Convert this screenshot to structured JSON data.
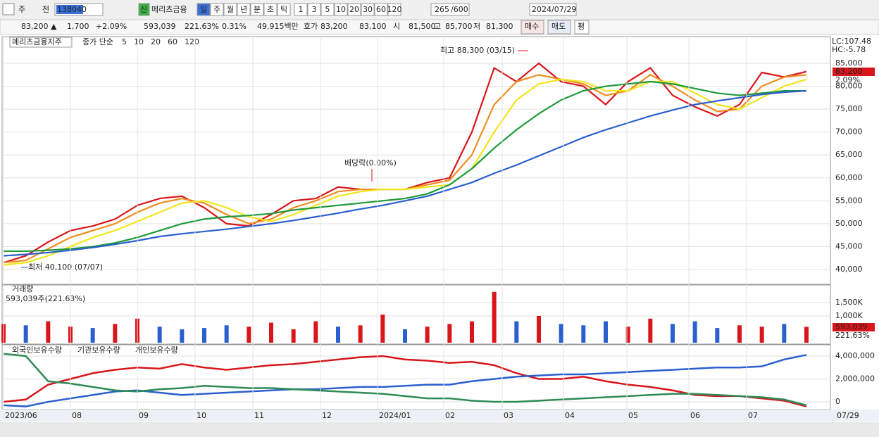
{
  "toolbar": {
    "period_buttons": [
      "주",
      "전"
    ],
    "code": "138040",
    "name_badge": "신",
    "name": "메리츠금융",
    "intervals": [
      "일",
      "주",
      "월",
      "년",
      "분",
      "초",
      "틱"
    ],
    "numbers": [
      "1",
      "3",
      "5",
      "10",
      "20",
      "30",
      "60",
      "120"
    ],
    "count": "265",
    "count_max": "/600",
    "date": "2024/07/29"
  },
  "quote": {
    "price": "83,200 ▲",
    "change": "1,700",
    "rate": "+2.09%",
    "volume": "593,039",
    "volume_ratio": "221.63%",
    "turnover": "0.31%",
    "amount": "49,915백만",
    "bid_label": "호가",
    "ask": "83,200",
    "bid": "83,100",
    "open_label": "시",
    "open": "81,500",
    "high_label": "고",
    "high": "85,700",
    "low_label": "저",
    "low": "81,300",
    "buy": "매수",
    "sell": "매도",
    "avg": "평"
  },
  "x_axis": {
    "labels": [
      "2023/06",
      "08",
      "09",
      "10",
      "11",
      "12",
      "2024/01",
      "02",
      "03",
      "04",
      "05",
      "06",
      "07"
    ],
    "end": "07/29"
  },
  "chart_data": [
    {
      "type": "line",
      "title": "메리츠금융지주",
      "legend_title": "종가 단순",
      "right_labels": [
        "LC:107.48",
        "HC:-5.78"
      ],
      "last_price": "83,200",
      "last_rate": "2.09%",
      "annotations": [
        "최고 88,300 (03/15)",
        "최저 40,100 (07/07)",
        "배당락(0.00%)"
      ],
      "ylim": [
        36930,
        90370
      ],
      "yticks": [
        {
          "value": 40000,
          "label": "40,000"
        },
        {
          "value": 45000,
          "label": "45,000"
        },
        {
          "value": 50000,
          "label": "50,000"
        },
        {
          "value": 55000,
          "label": "55,000"
        },
        {
          "value": 60000,
          "label": "60,000"
        },
        {
          "value": 65000,
          "label": "65,000"
        },
        {
          "value": 70000,
          "label": "70,000"
        },
        {
          "value": 75000,
          "label": "75,000"
        },
        {
          "value": 80000,
          "label": "80,000"
        },
        {
          "value": 85000,
          "label": "85,000"
        }
      ],
      "series": [
        {
          "name": "5",
          "color": "#d9161b",
          "values": [
            41500,
            43000,
            46000,
            48500,
            49500,
            51000,
            54000,
            55500,
            56000,
            53500,
            50000,
            49500,
            52000,
            55000,
            55500,
            58000,
            57500,
            57500,
            57500,
            59000,
            60000,
            70000,
            84000,
            81000,
            85000,
            81000,
            80000,
            76000,
            81000,
            84000,
            78000,
            75500,
            73500,
            76000,
            83000,
            82000,
            83200
          ]
        },
        {
          "name": "10",
          "color": "#f08c1e",
          "values": [
            41500,
            42000,
            44500,
            47000,
            48500,
            50000,
            52500,
            54500,
            55500,
            54500,
            52000,
            50000,
            51000,
            53500,
            55000,
            57000,
            57500,
            57500,
            57500,
            58500,
            59500,
            65000,
            76000,
            81000,
            82500,
            81500,
            80500,
            78000,
            79000,
            82500,
            80000,
            77000,
            74500,
            75000,
            80000,
            82000,
            82500
          ]
        },
        {
          "name": "20",
          "color": "#f2e61a",
          "values": [
            41000,
            41500,
            43000,
            45000,
            47000,
            48500,
            50500,
            52500,
            54500,
            55000,
            53500,
            51500,
            50500,
            52000,
            54000,
            56000,
            57000,
            57500,
            57500,
            58000,
            58500,
            62000,
            70000,
            77000,
            80500,
            81500,
            81000,
            79000,
            79000,
            81000,
            81000,
            78500,
            76000,
            75000,
            77500,
            80000,
            81500
          ]
        },
        {
          "name": "60",
          "color": "#1f9a3a",
          "values": [
            44000,
            44000,
            44200,
            44500,
            45000,
            45800,
            47000,
            48500,
            50000,
            51000,
            51500,
            51800,
            52200,
            53000,
            53500,
            54000,
            54500,
            55000,
            55500,
            56500,
            58500,
            62000,
            66500,
            70500,
            74000,
            77000,
            79000,
            80000,
            80500,
            81000,
            80500,
            79500,
            78500,
            78000,
            78500,
            79000,
            79000
          ]
        },
        {
          "name": "120",
          "color": "#2b5fcf",
          "values": [
            43000,
            43300,
            43700,
            44200,
            44800,
            45500,
            46300,
            47200,
            47800,
            48300,
            48800,
            49400,
            50000,
            50700,
            51500,
            52300,
            53200,
            54000,
            55000,
            56000,
            57500,
            59000,
            61000,
            62800,
            64800,
            66800,
            68800,
            70500,
            72000,
            73500,
            74800,
            76000,
            76800,
            77500,
            78200,
            78700,
            79000
          ]
        }
      ]
    },
    {
      "type": "bar",
      "title": "거래량",
      "subtitle": "593,039주(221.63%)",
      "last_value": "593,039",
      "last_rate": "221.63%",
      "ylim": [
        0,
        2000000
      ],
      "yticks": [
        {
          "value": 1000000,
          "label": "1,000K"
        },
        {
          "value": 1500000,
          "label": "1,500K"
        }
      ],
      "values": [
        700000,
        650000,
        800000,
        600000,
        550000,
        700000,
        900000,
        600000,
        500000,
        550000,
        650000,
        600000,
        750000,
        500000,
        800000,
        600000,
        650000,
        1050000,
        500000,
        600000,
        700000,
        800000,
        1900000,
        800000,
        1000000,
        700000,
        650000,
        800000,
        600000,
        900000,
        700000,
        800000,
        550000,
        650000,
        600000,
        700000,
        593039
      ],
      "colors": [
        "#d9161b",
        "#2b5fcf",
        "#d9161b",
        "#d9161b",
        "#2b5fcf",
        "#d9161b",
        "#d9161b",
        "#2b5fcf",
        "#2b5fcf",
        "#2b5fcf",
        "#2b5fcf",
        "#d9161b",
        "#d9161b",
        "#d9161b",
        "#d9161b",
        "#2b5fcf",
        "#d9161b",
        "#d9161b",
        "#2b5fcf",
        "#d9161b",
        "#d9161b",
        "#d9161b",
        "#d9161b",
        "#2b5fcf",
        "#d9161b",
        "#2b5fcf",
        "#2b5fcf",
        "#2b5fcf",
        "#d9161b",
        "#d9161b",
        "#2b5fcf",
        "#2b5fcf",
        "#2b5fcf",
        "#d9161b",
        "#d9161b",
        "#2b5fcf",
        "#d9161b"
      ]
    },
    {
      "type": "line",
      "ylim": [
        -550000,
        4980000
      ],
      "yticks": [
        {
          "value": 0,
          "label": "0"
        },
        {
          "value": 2000000,
          "label": "2,000,000"
        },
        {
          "value": 4000000,
          "label": "4,000,000"
        }
      ],
      "series": [
        {
          "name": "외국인보유수량",
          "color": "#d9161b",
          "values": [
            0,
            200000,
            1500000,
            2000000,
            2500000,
            2800000,
            3000000,
            2900000,
            3300000,
            3000000,
            2800000,
            3000000,
            3200000,
            3300000,
            3500000,
            3700000,
            3900000,
            4000000,
            3700000,
            3600000,
            3400000,
            3500000,
            3200000,
            2500000,
            2000000,
            2000000,
            2200000,
            1800000,
            1500000,
            1300000,
            1000000,
            600000,
            500000,
            500000,
            300000,
            100000,
            -400000
          ]
        },
        {
          "name": "기관보유수량",
          "color": "#2b5fcf",
          "values": [
            -300000,
            -400000,
            0,
            300000,
            600000,
            900000,
            1000000,
            800000,
            600000,
            700000,
            800000,
            900000,
            1000000,
            1100000,
            1100000,
            1200000,
            1300000,
            1300000,
            1400000,
            1500000,
            1500000,
            1800000,
            2000000,
            2200000,
            2300000,
            2400000,
            2400000,
            2500000,
            2600000,
            2700000,
            2800000,
            2900000,
            3000000,
            3000000,
            3100000,
            3700000,
            4100000
          ]
        },
        {
          "name": "개인보유수량",
          "color": "#2e8b57",
          "values": [
            4200000,
            4000000,
            1800000,
            1600000,
            1300000,
            1000000,
            900000,
            1100000,
            1200000,
            1400000,
            1300000,
            1200000,
            1200000,
            1100000,
            1000000,
            900000,
            800000,
            700000,
            500000,
            300000,
            300000,
            100000,
            0,
            0,
            100000,
            200000,
            300000,
            400000,
            500000,
            600000,
            700000,
            700000,
            600000,
            500000,
            400000,
            200000,
            -300000
          ]
        }
      ]
    }
  ]
}
